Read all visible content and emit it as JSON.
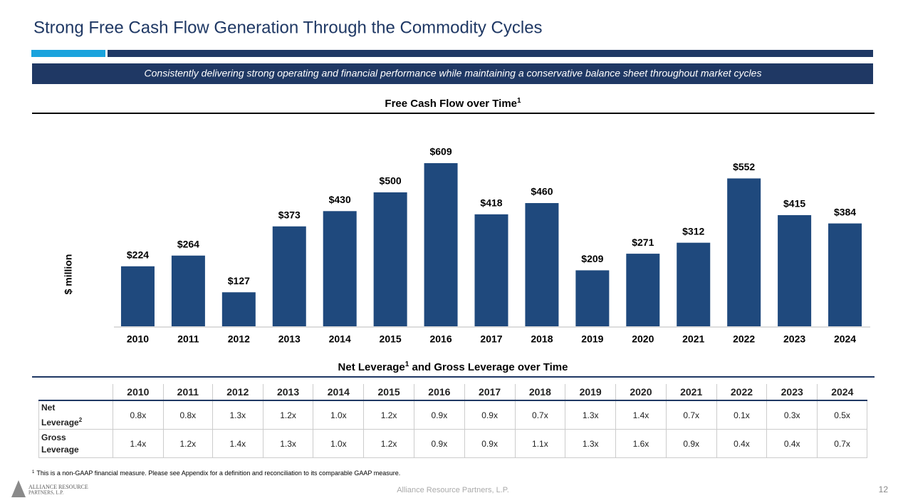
{
  "title": "Strong Free Cash Flow Generation Through the Commodity Cycles",
  "subtitle": "Consistently delivering strong operating and financial performance while maintaining a conservative balance sheet throughout market cycles",
  "chart_data": {
    "type": "bar",
    "title": "Free Cash Flow over Time",
    "title_note": "1",
    "ylabel": "$ million",
    "categories": [
      "2010",
      "2011",
      "2012",
      "2013",
      "2014",
      "2015",
      "2016",
      "2017",
      "2018",
      "2019",
      "2020",
      "2021",
      "2022",
      "2023",
      "2024"
    ],
    "values": [
      224,
      264,
      127,
      373,
      430,
      500,
      609,
      418,
      460,
      209,
      271,
      312,
      552,
      415,
      384
    ],
    "value_labels": [
      "$224",
      "$264",
      "$127",
      "$373",
      "$430",
      "$500",
      "$609",
      "$418",
      "$460",
      "$209",
      "$271",
      "$312",
      "$552",
      "$415",
      "$384"
    ],
    "color": "#1f497d"
  },
  "table": {
    "title_parts": [
      "Net Leverage",
      "1",
      " and Gross Leverage over Time"
    ],
    "columns": [
      "2010",
      "2011",
      "2012",
      "2013",
      "2014",
      "2015",
      "2016",
      "2017",
      "2018",
      "2019",
      "2020",
      "2021",
      "2022",
      "2023",
      "2024"
    ],
    "rows": [
      {
        "label": "Net Leverage",
        "label_note": "2",
        "values": [
          "0.8x",
          "0.8x",
          "1.3x",
          "1.2x",
          "1.0x",
          "1.2x",
          "0.9x",
          "0.9x",
          "0.7x",
          "1.3x",
          "1.4x",
          "0.7x",
          "0.1x",
          "0.3x",
          "0.5x"
        ]
      },
      {
        "label": "Gross Leverage",
        "values": [
          "1.4x",
          "1.2x",
          "1.4x",
          "1.3x",
          "1.0x",
          "1.2x",
          "0.9x",
          "0.9x",
          "1.1x",
          "1.3x",
          "1.6x",
          "0.9x",
          "0.4x",
          "0.4x",
          "0.7x"
        ]
      }
    ]
  },
  "footnote": {
    "mark": "1",
    "text": "This is a non-GAAP financial measure. Please see Appendix for a definition and reconciliation to its comparable GAAP measure."
  },
  "logo": [
    "Alliance Resource",
    "Partners, L.P."
  ],
  "footer": "Alliance Resource Partners, L.P.",
  "page_number": "12"
}
